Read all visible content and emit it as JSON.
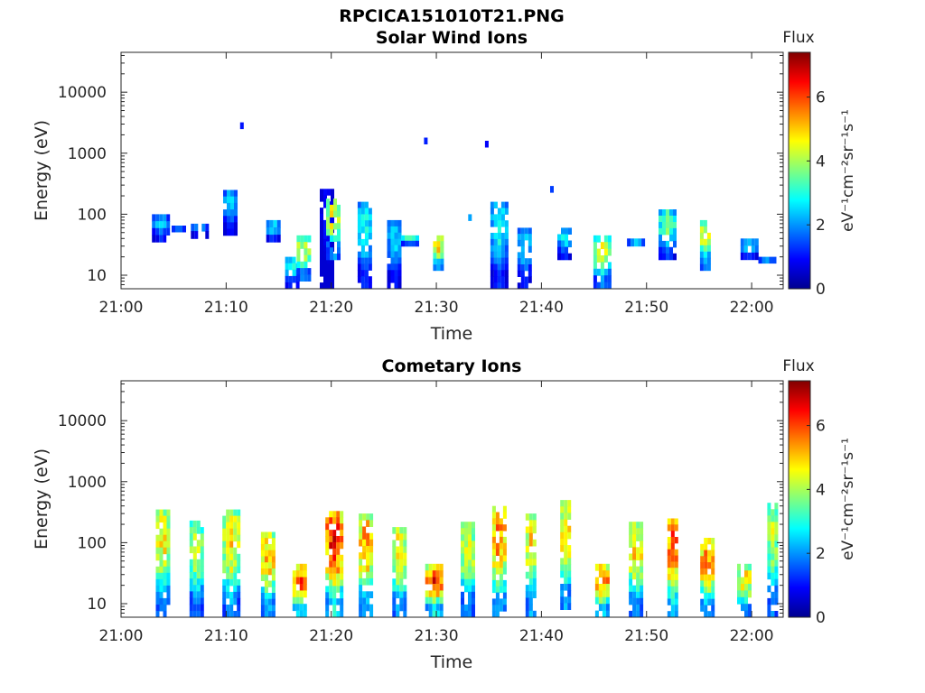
{
  "figure": {
    "title": "RPCICA151010T21.PNG"
  },
  "colorbar": {
    "label": "Flux",
    "unit": "eV⁻¹cm⁻²sr⁻¹s⁻¹",
    "ticks": [
      "0",
      "2",
      "4",
      "6"
    ],
    "range": [
      0,
      7.4
    ]
  },
  "chart_data": [
    {
      "type": "heatmap",
      "title": "Solar Wind Ions",
      "xlabel": "Time",
      "ylabel": "Energy (eV)",
      "xticks": [
        "21:00",
        "21:10",
        "21:20",
        "21:30",
        "21:40",
        "21:50",
        "22:00"
      ],
      "xlim_minutes_after_2100": [
        0,
        63
      ],
      "yticks": [
        "10",
        "100",
        "1000",
        "10000"
      ],
      "yscale": "log",
      "ylim": [
        6,
        45000
      ],
      "clim": [
        0,
        7.4
      ],
      "bursts": [
        {
          "t": 3.8,
          "e_hi": 100,
          "e_lo": 35,
          "peak": 2.6
        },
        {
          "t": 5.5,
          "e_hi": 65,
          "e_lo": 60,
          "peak": 2.3
        },
        {
          "t": 7.5,
          "e_hi": 70,
          "e_lo": 40,
          "peak": 2.5
        },
        {
          "t": 10.4,
          "e_hi": 250,
          "e_lo": 45,
          "peak": 2.6
        },
        {
          "t": 11.5,
          "e_hi": 3200,
          "e_lo": 3200,
          "peak": 1.2
        },
        {
          "t": 14.5,
          "e_hi": 80,
          "e_lo": 35,
          "peak": 3.0
        },
        {
          "t": 16.3,
          "e_hi": 20,
          "e_lo": 6,
          "peak": 3.0
        },
        {
          "t": 17.4,
          "e_hi": 45,
          "e_lo": 8,
          "peak": 4.5
        },
        {
          "t": 19.6,
          "e_hi": 260,
          "e_lo": 6,
          "peak": 1.3
        },
        {
          "t": 20.2,
          "e_hi": 180,
          "e_lo": 18,
          "peak": 4.7
        },
        {
          "t": 23.2,
          "e_hi": 160,
          "e_lo": 6,
          "peak": 3.0
        },
        {
          "t": 26.0,
          "e_hi": 80,
          "e_lo": 6,
          "peak": 2.6
        },
        {
          "t": 27.5,
          "e_hi": 45,
          "e_lo": 30,
          "peak": 4.0
        },
        {
          "t": 29.0,
          "e_hi": 1800,
          "e_lo": 1800,
          "peak": 1.2
        },
        {
          "t": 30.2,
          "e_hi": 45,
          "e_lo": 12,
          "peak": 5.0
        },
        {
          "t": 33.2,
          "e_hi": 100,
          "e_lo": 100,
          "peak": 2.2
        },
        {
          "t": 34.8,
          "e_hi": 1600,
          "e_lo": 1600,
          "peak": 1.2
        },
        {
          "t": 36.0,
          "e_hi": 160,
          "e_lo": 6,
          "peak": 3.0
        },
        {
          "t": 38.4,
          "e_hi": 60,
          "e_lo": 6,
          "peak": 2.7
        },
        {
          "t": 41.0,
          "e_hi": 290,
          "e_lo": 290,
          "peak": 1.8
        },
        {
          "t": 42.2,
          "e_hi": 60,
          "e_lo": 18,
          "peak": 2.8
        },
        {
          "t": 45.8,
          "e_hi": 45,
          "e_lo": 6,
          "peak": 4.5
        },
        {
          "t": 49.0,
          "e_hi": 40,
          "e_lo": 30,
          "peak": 2.7
        },
        {
          "t": 52.0,
          "e_hi": 120,
          "e_lo": 18,
          "peak": 3.7
        },
        {
          "t": 55.6,
          "e_hi": 80,
          "e_lo": 12,
          "peak": 4.5
        },
        {
          "t": 59.8,
          "e_hi": 40,
          "e_lo": 18,
          "peak": 3.2
        },
        {
          "t": 61.5,
          "e_hi": 20,
          "e_lo": 18,
          "peak": 2.6
        }
      ]
    },
    {
      "type": "heatmap",
      "title": "Cometary Ions",
      "xlabel": "Time",
      "ylabel": "Energy (eV)",
      "xticks": [
        "21:00",
        "21:10",
        "21:20",
        "21:30",
        "21:40",
        "21:50",
        "22:00"
      ],
      "xlim_minutes_after_2100": [
        0,
        63
      ],
      "yticks": [
        "10",
        "100",
        "1000",
        "10000"
      ],
      "yscale": "log",
      "ylim": [
        6,
        45000
      ],
      "clim": [
        0,
        7.4
      ],
      "bursts": [
        {
          "t": 4.0,
          "e_hi": 350,
          "e_lo": 6,
          "peak": 4.8
        },
        {
          "t": 7.2,
          "e_hi": 230,
          "e_lo": 6,
          "peak": 4.3
        },
        {
          "t": 10.5,
          "e_hi": 350,
          "e_lo": 6,
          "peak": 5.0
        },
        {
          "t": 14.0,
          "e_hi": 150,
          "e_lo": 6,
          "peak": 5.3
        },
        {
          "t": 17.0,
          "e_hi": 45,
          "e_lo": 6,
          "peak": 6.0
        },
        {
          "t": 20.3,
          "e_hi": 330,
          "e_lo": 6,
          "peak": 6.4
        },
        {
          "t": 23.3,
          "e_hi": 300,
          "e_lo": 6,
          "peak": 5.5
        },
        {
          "t": 26.5,
          "e_hi": 180,
          "e_lo": 6,
          "peak": 5.0
        },
        {
          "t": 29.8,
          "e_hi": 45,
          "e_lo": 6,
          "peak": 6.2
        },
        {
          "t": 33.0,
          "e_hi": 220,
          "e_lo": 6,
          "peak": 4.6
        },
        {
          "t": 36.0,
          "e_hi": 400,
          "e_lo": 6,
          "peak": 5.6
        },
        {
          "t": 39.0,
          "e_hi": 300,
          "e_lo": 6,
          "peak": 4.8
        },
        {
          "t": 42.3,
          "e_hi": 500,
          "e_lo": 8,
          "peak": 5.0
        },
        {
          "t": 45.8,
          "e_hi": 45,
          "e_lo": 6,
          "peak": 5.8
        },
        {
          "t": 49.0,
          "e_hi": 220,
          "e_lo": 6,
          "peak": 5.0
        },
        {
          "t": 52.5,
          "e_hi": 250,
          "e_lo": 6,
          "peak": 6.0
        },
        {
          "t": 55.8,
          "e_hi": 120,
          "e_lo": 6,
          "peak": 5.6
        },
        {
          "t": 59.3,
          "e_hi": 45,
          "e_lo": 6,
          "peak": 5.0
        },
        {
          "t": 62.0,
          "e_hi": 450,
          "e_lo": 6,
          "peak": 4.2
        }
      ]
    }
  ]
}
